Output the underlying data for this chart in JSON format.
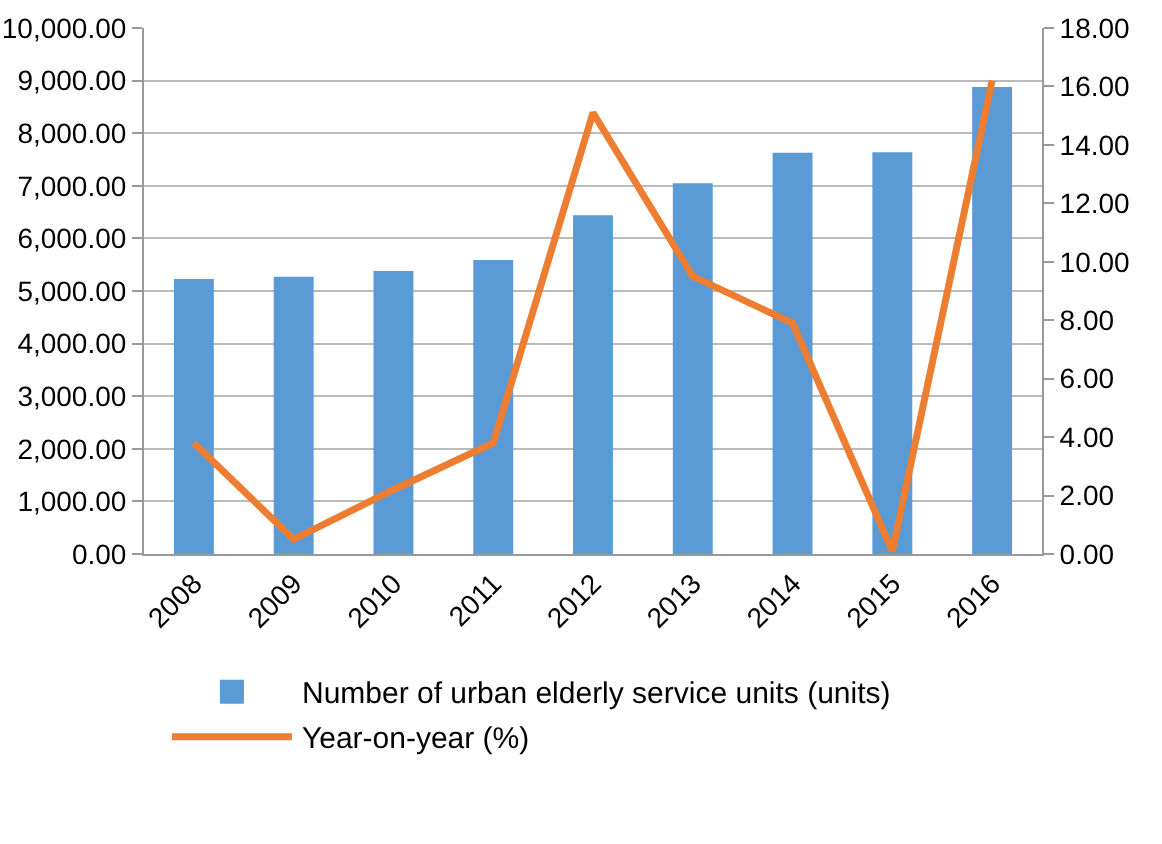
{
  "chart_data": {
    "type": "bar",
    "categories": [
      "2008",
      "2009",
      "2010",
      "2011",
      "2012",
      "2013",
      "2014",
      "2015",
      "2016"
    ],
    "series": [
      {
        "name": "Number of urban elderly service units (units)",
        "color": "#5b9bd5",
        "values": [
          5230,
          5270,
          5380,
          5590,
          6440,
          7050,
          7630,
          7640,
          8880
        ]
      },
      {
        "name": "Year-on-year (%)",
        "type": "line",
        "axis": "y2",
        "color": "#ed7d31",
        "values": [
          3.8,
          0.5,
          2.2,
          3.8,
          15.1,
          9.5,
          7.9,
          0.1,
          16.2
        ]
      }
    ],
    "ylim": [
      0,
      10000
    ],
    "yticks": [
      {
        "value": 0,
        "label": "0.00"
      },
      {
        "value": 1000,
        "label": "1,000.00"
      },
      {
        "value": 2000,
        "label": "2,000.00"
      },
      {
        "value": 3000,
        "label": "3,000.00"
      },
      {
        "value": 4000,
        "label": "4,000.00"
      },
      {
        "value": 5000,
        "label": "5,000.00"
      },
      {
        "value": 6000,
        "label": "6,000.00"
      },
      {
        "value": 7000,
        "label": "7,000.00"
      },
      {
        "value": 8000,
        "label": "8,000.00"
      },
      {
        "value": 9000,
        "label": "9,000.00"
      },
      {
        "value": 10000,
        "label": "10,000.00"
      }
    ],
    "y2lim": [
      0,
      18
    ],
    "y2ticks": [
      {
        "value": 0,
        "label": "0.00"
      },
      {
        "value": 2,
        "label": "2.00"
      },
      {
        "value": 4,
        "label": "4.00"
      },
      {
        "value": 6,
        "label": "6.00"
      },
      {
        "value": 8,
        "label": "8.00"
      },
      {
        "value": 10,
        "label": "10.00"
      },
      {
        "value": 12,
        "label": "12.00"
      },
      {
        "value": 14,
        "label": "14.00"
      },
      {
        "value": 16,
        "label": "16.00"
      },
      {
        "value": 18,
        "label": "18.00"
      }
    ],
    "grid": "y",
    "legend": "bottom",
    "marker": "none",
    "line_style": "solid"
  }
}
